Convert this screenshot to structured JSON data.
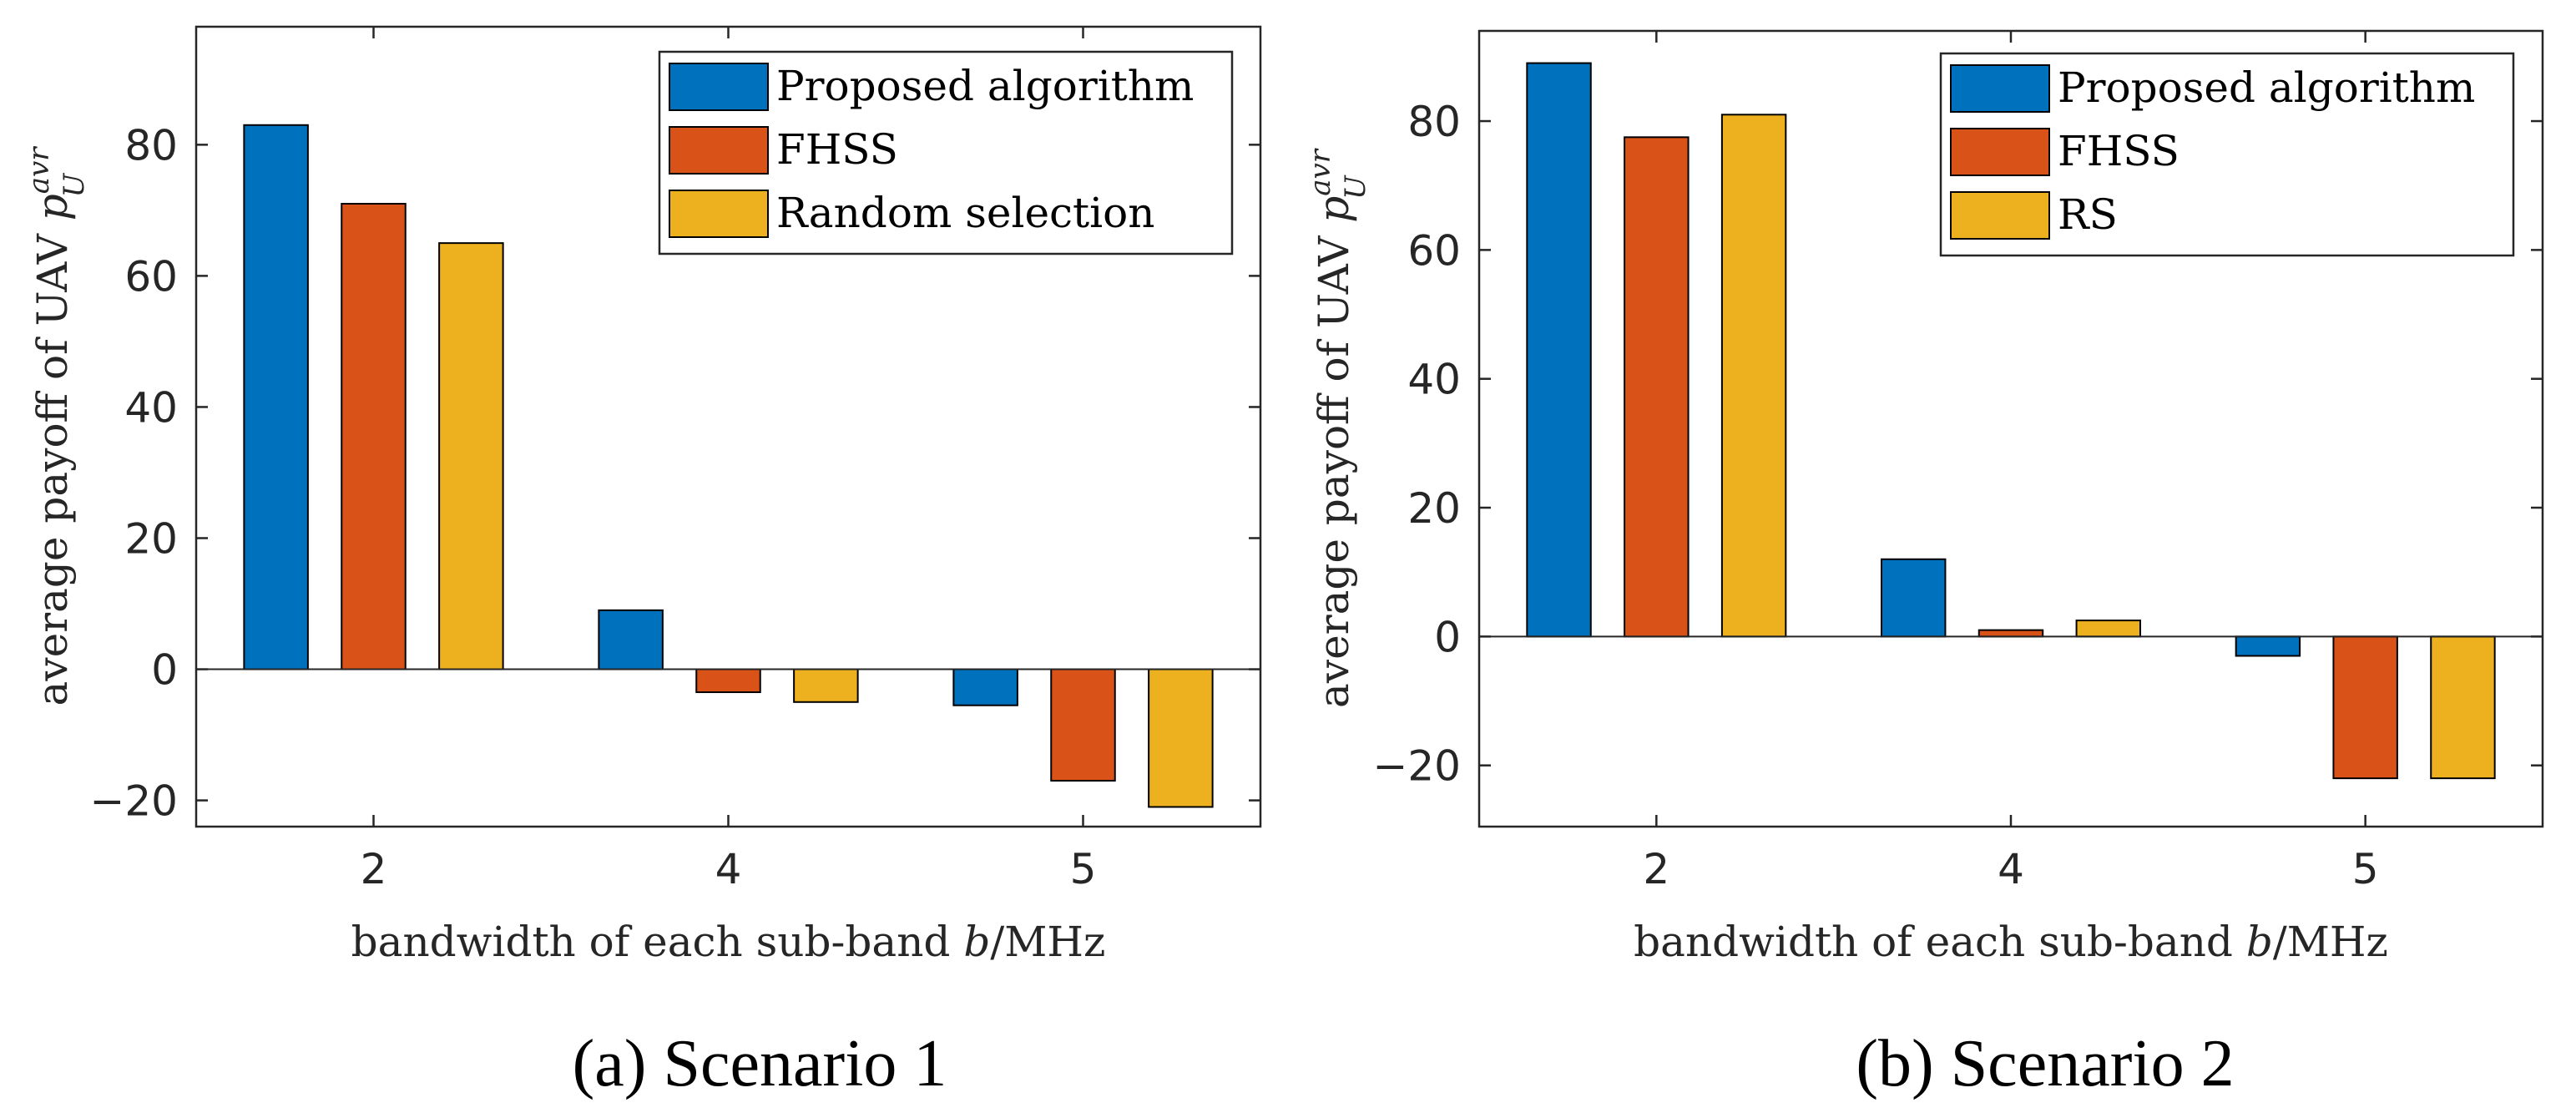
{
  "colors": {
    "proposed": "#0072BD",
    "fhss": "#D95319",
    "random": "#EDB120",
    "axis": "#262626"
  },
  "chart_data": [
    {
      "type": "bar",
      "categories": [
        "2",
        "4",
        "5"
      ],
      "series": [
        {
          "name": "Proposed algorithm",
          "values": [
            83,
            9,
            -5.5
          ]
        },
        {
          "name": "FHSS",
          "values": [
            71,
            -3.5,
            -17
          ]
        },
        {
          "name": "Random selection",
          "values": [
            65,
            -5,
            -21
          ]
        }
      ],
      "xlabel": "bandwidth of each sub-band b/MHz",
      "ylabel": "average payoff of UAV p",
      "ylabel_sup": "avr",
      "ylabel_sub": "U",
      "ylim": [
        -24,
        98
      ],
      "yticks": [
        -20,
        0,
        20,
        40,
        60,
        80
      ],
      "ytick_labels": [
        "−20",
        "0",
        "20",
        "40",
        "60",
        "80"
      ],
      "legend_position": "top-right",
      "grid": false,
      "caption": "(a)  Scenario 1"
    },
    {
      "type": "bar",
      "categories": [
        "2",
        "4",
        "5"
      ],
      "series": [
        {
          "name": "Proposed algorithm",
          "values": [
            89,
            12,
            -3
          ]
        },
        {
          "name": "FHSS",
          "values": [
            77.5,
            1,
            -22
          ]
        },
        {
          "name": "RS",
          "values": [
            81,
            2.5,
            -22
          ]
        }
      ],
      "xlabel": "bandwidth of each sub-band b/MHz",
      "ylabel": "average payoff of UAV p",
      "ylabel_sup": "avr",
      "ylabel_sub": "U",
      "ylim": [
        -29.5,
        94
      ],
      "yticks": [
        -20,
        0,
        20,
        40,
        60,
        80
      ],
      "ytick_labels": [
        "−20",
        "0",
        "20",
        "40",
        "60",
        "80"
      ],
      "legend_position": "top-right",
      "grid": false,
      "caption": "(b)  Scenario 2"
    }
  ]
}
